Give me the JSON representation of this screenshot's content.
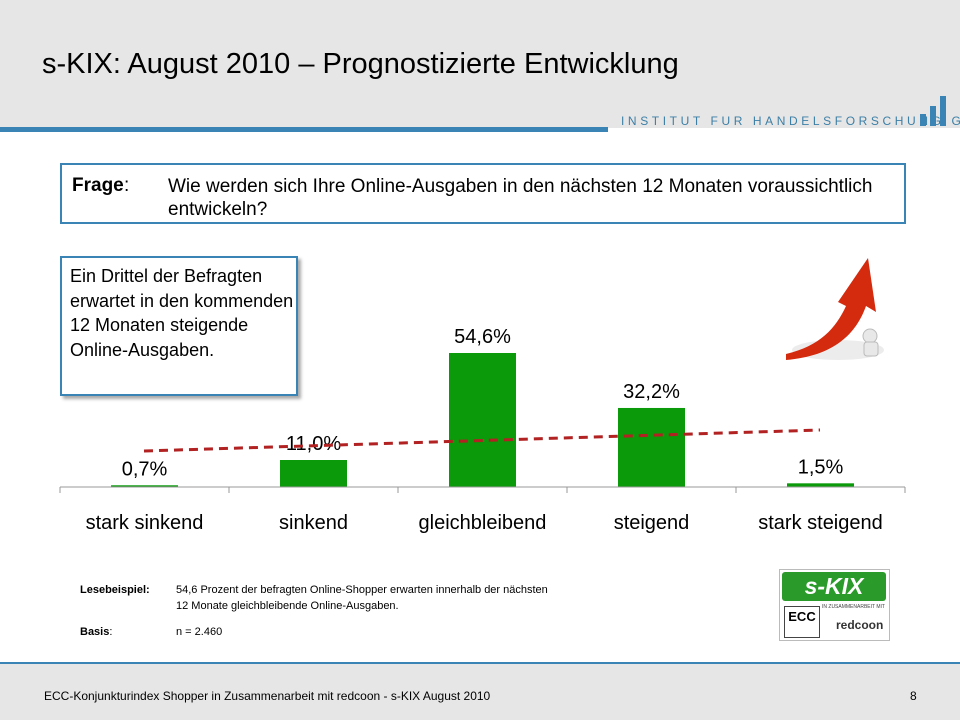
{
  "header": {
    "title": "s-KIX: August 2010 – Prognostizierte Entwicklung",
    "institute": "INSTITUT FUR HANDELSFORSCHUNG GMBH"
  },
  "question": {
    "label": "Frage",
    "text": "Wie werden sich Ihre Online-Ausgaben in den nächsten 12 Monaten voraussichtlich entwickeln?"
  },
  "callout": {
    "text": "Ein Drittel der Befragten erwartet in den kommenden 12 Monaten steigende Online-Ausgaben."
  },
  "chart_data": {
    "type": "bar",
    "categories": [
      "stark sinkend",
      "sinkend",
      "gleichbleibend",
      "steigend",
      "stark steigend"
    ],
    "values": [
      0.7,
      11.0,
      54.6,
      32.2,
      1.5
    ],
    "data_labels": [
      "0,7%",
      "11,0%",
      "54,6%",
      "32,2%",
      "1,5%"
    ],
    "ylim": [
      0,
      60
    ],
    "bar_color": "#0a9a0a",
    "trendline": {
      "style": "dashed",
      "color": "#b22222"
    },
    "grid": false,
    "legend": "none"
  },
  "reading_note": {
    "example_label": "Lesebeispiel:",
    "example_text_line1": "54,6 Prozent der befragten Online-Shopper erwarten innerhalb der nächsten",
    "example_text_line2": "12 Monate gleichbleibende Online-Ausgaben.",
    "basis_label": "Basis",
    "basis_value": "n = 2.460"
  },
  "brand": {
    "logo_text": "s-KIX",
    "ecc": "ECC",
    "cooperation": "IN ZUSAMMENARBEIT MIT",
    "partner": "redcoon"
  },
  "footer": {
    "text": "ECC-Konjunkturindex Shopper in Zusammenarbeit mit redcoon - s-KIX August 2010",
    "page": "8"
  },
  "colors": {
    "accent": "#3a83b5",
    "header_bg": "#e6e6e6"
  }
}
